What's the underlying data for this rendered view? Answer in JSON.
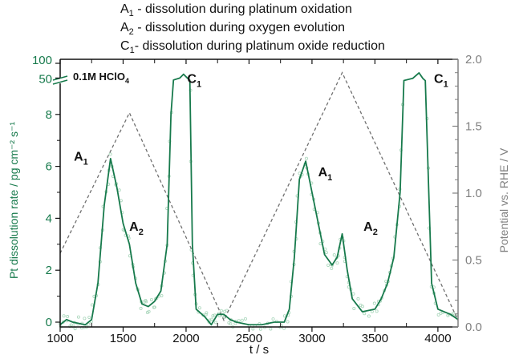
{
  "chart_data": {
    "type": "line",
    "legend_lines": [
      {
        "sym": "A",
        "sub": "1",
        "text": " - dissolution during platinum oxidation"
      },
      {
        "sym": "A",
        "sub": "2",
        "text": " - dissolution during oxygen evolution"
      },
      {
        "sym": "C",
        "sub": "1",
        "text": "- dissolution during platinum oxide reduction"
      }
    ],
    "xlabel": "t / s",
    "ylabel": "Pt dissolution rate / pg cm⁻² s⁻¹",
    "y2label": "Potential vs. RHE / V",
    "xlim": [
      1000,
      4160
    ],
    "ylim": [
      -0.3,
      100
    ],
    "y_break": [
      9.3,
      50
    ],
    "y2lim": [
      0.0,
      2.0
    ],
    "xticks": [
      "1000",
      "1500",
      "2000",
      "2500",
      "3000",
      "3500",
      "4000"
    ],
    "yticks": [
      "0",
      "2",
      "4",
      "6",
      "8",
      "50",
      "100"
    ],
    "y2ticks": [
      "0.0",
      "0.5",
      "1.0",
      "1.5",
      "2.0"
    ],
    "electrolyte_label": {
      "main": "0.1M HClO",
      "sub": "4"
    },
    "annotations": [
      {
        "sym": "A",
        "sub": "1",
        "t": 1160,
        "rate": 6.4
      },
      {
        "sym": "A",
        "sub": "2",
        "t": 1600,
        "rate": 3.7
      },
      {
        "sym": "C",
        "sub": "1",
        "t": 2060,
        "rate": 50
      },
      {
        "sym": "A",
        "sub": "1",
        "t": 3100,
        "rate": 5.8
      },
      {
        "sym": "A",
        "sub": "2",
        "t": 3460,
        "rate": 3.7
      },
      {
        "sym": "C",
        "sub": "1",
        "t": 4020,
        "rate": 50
      }
    ],
    "series": [
      {
        "name": "Pt dissolution rate",
        "axis": "left",
        "color": "#177a4c",
        "raw_color": "#a9d6bb",
        "t": [
          1000,
          1050,
          1100,
          1150,
          1200,
          1250,
          1300,
          1350,
          1400,
          1450,
          1500,
          1550,
          1600,
          1650,
          1700,
          1750,
          1800,
          1850,
          1880,
          1900,
          1950,
          1980,
          2010,
          2030,
          2050,
          2080,
          2150,
          2200,
          2250,
          2300,
          2350,
          2400,
          2500,
          2600,
          2700,
          2780,
          2820,
          2860,
          2900,
          2950,
          3000,
          3050,
          3100,
          3160,
          3200,
          3240,
          3280,
          3320,
          3400,
          3500,
          3550,
          3600,
          3650,
          3700,
          3730,
          3800,
          3850,
          3880,
          3900,
          3950,
          4000,
          4100,
          4160
        ],
        "rate": [
          -0.1,
          0.1,
          0,
          -0.05,
          -0.1,
          0.1,
          1.5,
          4.5,
          6.3,
          5.2,
          3.8,
          3.0,
          1.5,
          0.7,
          0.6,
          0.8,
          1.2,
          3.0,
          8.0,
          20,
          50,
          60,
          50,
          15,
          3.0,
          0.5,
          0.2,
          -0.1,
          0.3,
          0.3,
          0.1,
          0,
          -0.1,
          -0.1,
          0,
          0,
          0.5,
          2.5,
          5.5,
          6.2,
          5.0,
          3.8,
          2.6,
          2.2,
          2.5,
          3.4,
          2.0,
          0.9,
          0.4,
          0.5,
          0.9,
          1.5,
          2.5,
          5.0,
          12,
          45,
          65,
          45,
          10,
          1.5,
          0.5,
          0.3,
          0.1
        ]
      },
      {
        "name": "Potential",
        "axis": "right",
        "color": "#707070",
        "style": "dashed",
        "t": [
          1000,
          1550,
          2300,
          3240,
          4160
        ],
        "potential": [
          0.55,
          1.6,
          0.05,
          1.9,
          0.05
        ]
      }
    ]
  }
}
